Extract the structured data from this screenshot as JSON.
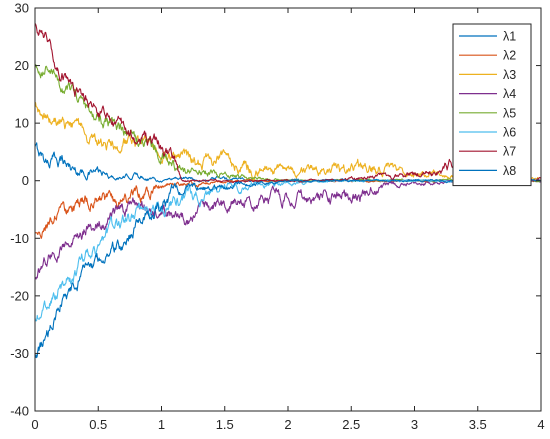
{
  "chart_data": {
    "type": "line",
    "title": "",
    "xlabel": "",
    "ylabel": "",
    "xlim": [
      0,
      4
    ],
    "ylim": [
      -40,
      30
    ],
    "xticks": [
      0,
      0.5,
      1,
      1.5,
      2,
      2.5,
      3,
      3.5,
      4
    ],
    "xtick_labels": [
      "0",
      "0.5",
      "1",
      "1.5",
      "2",
      "2.5",
      "3",
      "3.5",
      "4"
    ],
    "yticks": [
      -40,
      -30,
      -20,
      -10,
      0,
      10,
      20,
      30
    ],
    "ytick_labels": [
      "-40",
      "-30",
      "-20",
      "-10",
      "0",
      "10",
      "20",
      "30"
    ],
    "grid": false,
    "legend_position": "top-right",
    "series": [
      {
        "name": "λ1",
        "color": "#0072bd",
        "x": [
          0,
          0.1,
          0.2,
          0.3,
          0.4,
          0.5,
          0.6,
          0.7,
          0.8,
          0.9,
          1.0,
          1.1,
          1.2,
          1.3,
          1.5,
          1.7,
          2.0,
          2.3,
          2.6,
          3.0,
          3.5,
          4.0
        ],
        "y": [
          5.5,
          3.5,
          4.0,
          2.0,
          1.5,
          1.5,
          0.5,
          0.5,
          1.0,
          0.5,
          0.0,
          0.5,
          0.5,
          0.0,
          0.5,
          0.0,
          0.0,
          0.0,
          0.0,
          0.0,
          0.0,
          0.0
        ]
      },
      {
        "name": "λ2",
        "color": "#d95319",
        "x": [
          0,
          0.1,
          0.2,
          0.3,
          0.4,
          0.5,
          0.6,
          0.7,
          0.8,
          0.9,
          1.0,
          1.1,
          1.2,
          1.3,
          1.5,
          1.7,
          2.0,
          2.3,
          2.6,
          3.0,
          3.5,
          4.0
        ],
        "y": [
          -9.5,
          -7.5,
          -6.0,
          -5.0,
          -4.0,
          -3.0,
          -4.0,
          -3.0,
          -2.5,
          -2.0,
          -1.0,
          -0.5,
          -0.5,
          -0.5,
          0.0,
          0.0,
          0.0,
          0.0,
          0.0,
          0.0,
          0.0,
          0.0
        ]
      },
      {
        "name": "λ3",
        "color": "#edb120",
        "x": [
          0,
          0.1,
          0.2,
          0.3,
          0.4,
          0.5,
          0.6,
          0.7,
          0.8,
          0.9,
          1.0,
          1.1,
          1.2,
          1.3,
          1.5,
          1.7,
          2.0,
          2.3,
          2.6,
          2.8,
          3.0,
          3.5,
          4.0
        ],
        "y": [
          12.5,
          10.5,
          10.0,
          9.0,
          8.0,
          7.0,
          6.0,
          6.5,
          6.0,
          6.5,
          5.0,
          4.0,
          3.5,
          3.0,
          3.5,
          2.5,
          1.5,
          2.0,
          2.5,
          2.0,
          1.0,
          1.0,
          0.5
        ]
      },
      {
        "name": "λ4",
        "color": "#7e2f8e",
        "x": [
          0,
          0.1,
          0.2,
          0.3,
          0.4,
          0.5,
          0.6,
          0.7,
          0.8,
          0.9,
          1.0,
          1.1,
          1.2,
          1.3,
          1.5,
          1.7,
          2.0,
          2.3,
          2.6,
          2.8,
          3.0,
          3.5,
          4.0
        ],
        "y": [
          -16.5,
          -13.0,
          -11.5,
          -10.5,
          -8.5,
          -7.5,
          -6.0,
          -5.5,
          -4.0,
          -4.5,
          -5.0,
          -5.5,
          -7.0,
          -5.0,
          -4.5,
          -3.5,
          -3.0,
          -2.5,
          -2.5,
          -1.0,
          -0.5,
          0.0,
          0.0
        ]
      },
      {
        "name": "λ5",
        "color": "#77ac30",
        "x": [
          0,
          0.1,
          0.2,
          0.3,
          0.4,
          0.5,
          0.6,
          0.7,
          0.8,
          0.9,
          1.0,
          1.1,
          1.2,
          1.3,
          1.5,
          1.7,
          2.0,
          2.3,
          2.6,
          3.0,
          3.5,
          4.0
        ],
        "y": [
          20.0,
          19.5,
          16.5,
          15.0,
          13.0,
          11.5,
          9.5,
          8.0,
          7.0,
          6.5,
          4.5,
          2.5,
          1.5,
          1.5,
          1.0,
          0.5,
          0.0,
          0.0,
          0.0,
          0.0,
          0.0,
          0.0
        ]
      },
      {
        "name": "λ6",
        "color": "#4dbeee",
        "x": [
          0,
          0.1,
          0.2,
          0.3,
          0.4,
          0.5,
          0.6,
          0.7,
          0.8,
          0.9,
          1.0,
          1.1,
          1.2,
          1.3,
          1.5,
          1.7,
          2.0,
          2.3,
          2.6,
          3.0,
          3.5,
          4.0
        ],
        "y": [
          -23.5,
          -22.0,
          -18.5,
          -17.0,
          -13.0,
          -12.0,
          -9.0,
          -7.5,
          -5.5,
          -5.0,
          -4.0,
          -3.5,
          -3.0,
          -2.5,
          -1.5,
          -1.0,
          -0.5,
          0.0,
          0.0,
          0.0,
          0.0,
          0.0
        ]
      },
      {
        "name": "λ7",
        "color": "#a2142f",
        "x": [
          0,
          0.05,
          0.1,
          0.2,
          0.3,
          0.4,
          0.5,
          0.6,
          0.7,
          0.8,
          0.9,
          1.0,
          1.1,
          1.15,
          1.2,
          1.3,
          1.5,
          1.7,
          2.0,
          2.3,
          2.6,
          3.0,
          3.2,
          3.3,
          3.5,
          3.7,
          4.0
        ],
        "y": [
          27.0,
          26.0,
          24.0,
          19.0,
          16.0,
          14.0,
          12.5,
          10.0,
          9.0,
          7.0,
          6.5,
          5.5,
          3.0,
          0.5,
          0.0,
          0.0,
          0.0,
          0.0,
          0.0,
          0.0,
          0.5,
          1.0,
          1.5,
          3.0,
          2.0,
          2.0,
          0.5
        ]
      },
      {
        "name": "λ8",
        "color": "#0072bd",
        "x": [
          0,
          0.1,
          0.2,
          0.3,
          0.4,
          0.5,
          0.6,
          0.7,
          0.8,
          0.9,
          1.0,
          1.1,
          1.2,
          1.3,
          1.5,
          1.7,
          2.0,
          2.3,
          2.6,
          3.0,
          3.5,
          4.0
        ],
        "y": [
          -30.5,
          -27.0,
          -21.0,
          -19.0,
          -16.0,
          -14.0,
          -12.0,
          -10.5,
          -7.5,
          -6.0,
          -4.5,
          -2.0,
          -1.5,
          -1.5,
          -1.0,
          -0.5,
          0.0,
          0.0,
          0.0,
          0.0,
          0.0,
          0.0
        ]
      }
    ]
  }
}
